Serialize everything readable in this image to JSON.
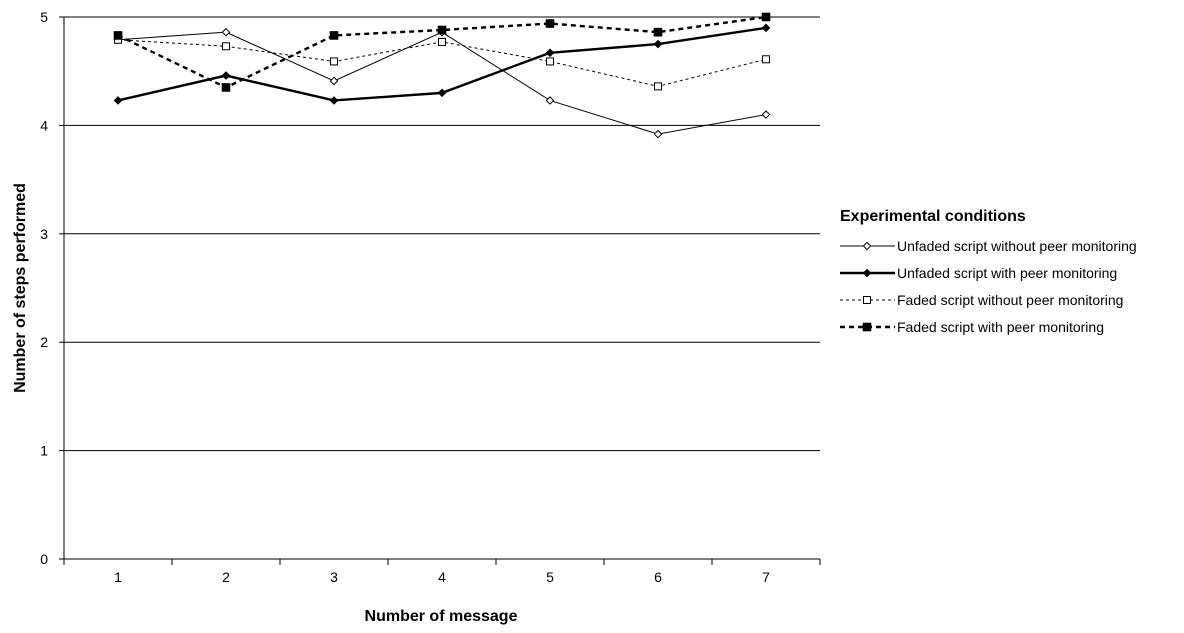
{
  "chart_data": {
    "type": "line",
    "xlabel": "Number of message",
    "ylabel": "Number of steps performed",
    "x": [
      1,
      2,
      3,
      4,
      5,
      6,
      7
    ],
    "xticks": [
      "1",
      "2",
      "3",
      "4",
      "5",
      "6",
      "7"
    ],
    "ylim": [
      0,
      5
    ],
    "yticks": [
      "0",
      "1",
      "2",
      "3",
      "4",
      "5"
    ],
    "grid": "horizontal",
    "legend": {
      "title": "Experimental conditions",
      "placement": "right"
    },
    "series": [
      {
        "name": "Unfaded script without peer monitoring",
        "values": [
          4.79,
          4.86,
          4.41,
          4.86,
          4.23,
          3.92,
          4.1
        ],
        "color": "#000000",
        "line": "thin-solid",
        "marker": "open-diamond"
      },
      {
        "name": "Unfaded script with peer monitoring",
        "values": [
          4.23,
          4.46,
          4.23,
          4.3,
          4.67,
          4.75,
          4.9
        ],
        "color": "#000000",
        "line": "thick-solid",
        "marker": "filled-diamond"
      },
      {
        "name": "Faded script without peer monitoring",
        "values": [
          4.79,
          4.73,
          4.59,
          4.77,
          4.59,
          4.36,
          4.61
        ],
        "color": "#000000",
        "line": "thin-dashed",
        "marker": "open-square"
      },
      {
        "name": "Faded script with peer monitoring",
        "values": [
          4.83,
          4.35,
          4.83,
          4.88,
          4.94,
          4.86,
          5.0
        ],
        "color": "#000000",
        "line": "thick-dashed",
        "marker": "filled-square"
      }
    ]
  }
}
